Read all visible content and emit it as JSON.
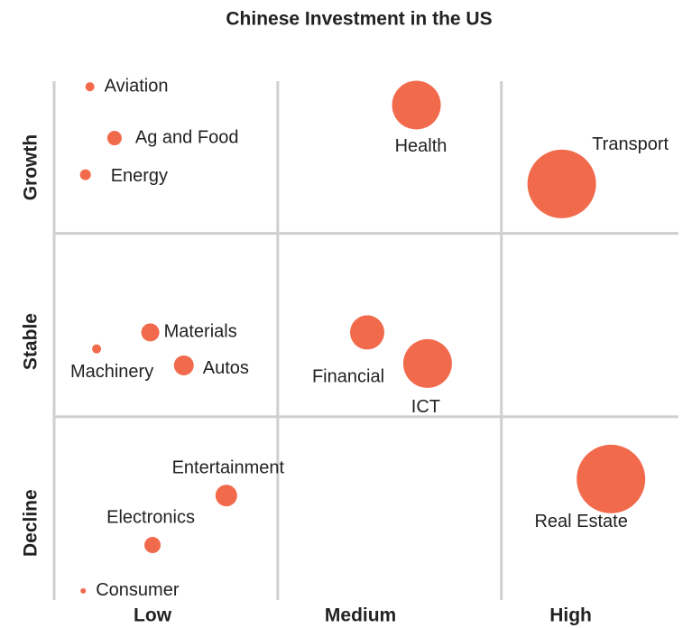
{
  "chart_data": {
    "type": "scatter",
    "title": "Chinese Investment in the  US",
    "color": "#f26a4c",
    "xlim": [
      0,
      2.8
    ],
    "ylim": [
      0,
      2.85
    ],
    "xticks": [
      {
        "value": 0.44,
        "label": "Low"
      },
      {
        "value": 1.37,
        "label": "Medium"
      },
      {
        "value": 2.31,
        "label": "High"
      }
    ],
    "yticks": [
      {
        "value": 0.42,
        "label": "Decline"
      },
      {
        "value": 1.41,
        "label": "Stable"
      },
      {
        "value": 2.36,
        "label": "Growth"
      }
    ],
    "xgrid": [
      0,
      1,
      2
    ],
    "ygrid": [
      1,
      2
    ],
    "grid": true,
    "names": [
      "Aviation",
      "Ag and Food",
      "Energy",
      "Health",
      "Transport",
      "Materials",
      "Machinery",
      "Autos",
      "Financial",
      "ICT",
      "Entertainment",
      "Electronics",
      "Consumer",
      "Real Estate"
    ],
    "x": [
      0.16,
      0.27,
      0.14,
      1.62,
      2.27,
      0.43,
      0.19,
      0.58,
      1.4,
      1.67,
      0.77,
      0.44,
      0.13,
      2.49
    ],
    "y": [
      2.8,
      2.52,
      2.32,
      2.7,
      2.27,
      1.46,
      1.37,
      1.28,
      1.46,
      1.29,
      0.57,
      0.3,
      0.05,
      0.66
    ],
    "size": [
      5,
      8,
      6,
      27,
      38,
      10,
      5,
      11,
      19,
      27,
      12,
      9,
      3,
      38
    ]
  }
}
